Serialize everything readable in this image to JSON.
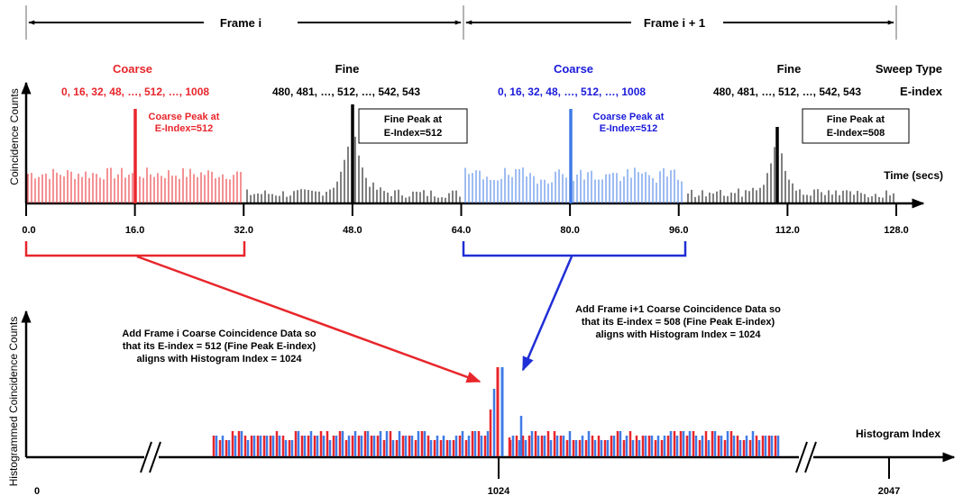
{
  "frames": {
    "frame_i_label": "Frame i",
    "frame_i1_label": "Frame i + 1"
  },
  "sweep_header": {
    "sweep_type_label": "Sweep Type",
    "e_index_label": "E-index",
    "coarse_label": "Coarse",
    "fine_label": "Fine",
    "coarse_e_indices": "0, 16, 32, 48, …, 512, …, 1008",
    "fine_e_indices": "480, 481, …, 512, …, 542, 543"
  },
  "top_chart": {
    "ylabel": "Coincidence Counts",
    "xlabel": "Time (secs)",
    "ticks": [
      "0.0",
      "16.0",
      "32.0",
      "48.0",
      "64.0",
      "80.0",
      "96.0",
      "112.0",
      "128.0"
    ],
    "peak_labels": {
      "coarse_i_line1": "Coarse Peak at",
      "coarse_i_line2": "E-Index=512",
      "fine_i_line1": "Fine Peak at",
      "fine_i_line2": "E-Index=512",
      "coarse_i1_line1": "Coarse Peak at",
      "coarse_i1_line2": "E-Index=512",
      "fine_i1_line1": "Fine Peak at",
      "fine_i1_line2": "E-Index=508"
    }
  },
  "annotations": {
    "frame_i_line1": "Add Frame i Coarse Coincidence Data so",
    "frame_i_line2": "that its E-index = 512 (Fine Peak E-index)",
    "frame_i_line3": "aligns with Histogram Index = 1024",
    "frame_i1_line1": "Add Frame i+1 Coarse Coincidence Data so",
    "frame_i1_line2": "that its E-index = 508 (Fine Peak E-index)",
    "frame_i1_line3": "aligns with Histogram Index = 1024"
  },
  "bottom_chart": {
    "ylabel": "Histogrammed Coincidence Counts",
    "xlabel": "Histogram Index",
    "ticks": [
      "0",
      "1024",
      "2047"
    ]
  },
  "colors": {
    "frame_i": "#e8262b",
    "frame_i1_text": "#1a1adc",
    "frame_i1_bars": "#3f7be6",
    "arrow_blue": "#1f2ed6",
    "fine": "#000000"
  }
}
